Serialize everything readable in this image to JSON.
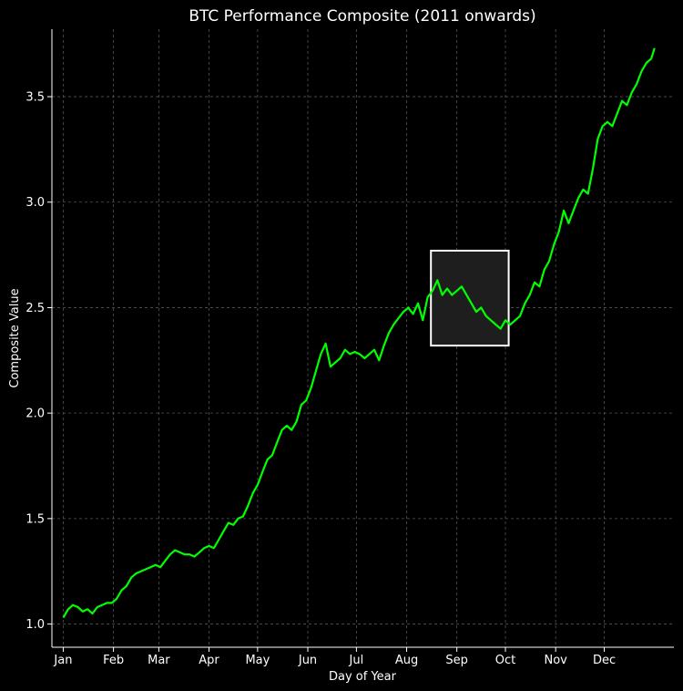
{
  "chart_data": {
    "type": "line",
    "title": "BTC Performance Composite (2011 onwards)",
    "xlabel": "Day of Year",
    "ylabel": "Composite Value",
    "x_tick_labels": [
      "Jan",
      "Feb",
      "Mar",
      "Apr",
      "May",
      "Jun",
      "Jul",
      "Aug",
      "Sep",
      "Oct",
      "Nov",
      "Dec"
    ],
    "x_tick_days": [
      1,
      32,
      60,
      91,
      121,
      152,
      182,
      213,
      244,
      274,
      305,
      335
    ],
    "xlim": [
      -6,
      378
    ],
    "ylim": [
      0.89,
      3.82
    ],
    "y_ticks": [
      1.0,
      1.5,
      2.0,
      2.5,
      3.0,
      3.5
    ],
    "y_tick_labels": [
      "1.0",
      "1.5",
      "2.0",
      "2.5",
      "3.0",
      "3.5"
    ],
    "grid": true,
    "line_color": "#00ff00",
    "highlight": {
      "x_range": [
        228,
        276
      ],
      "y_range": [
        2.32,
        2.77
      ],
      "fill": "#1e1e1e",
      "stroke": "#ffffff"
    },
    "series": [
      {
        "x": [
          1,
          4,
          7,
          10,
          13,
          16,
          19,
          22,
          25,
          28,
          31,
          34,
          37,
          40,
          43,
          46,
          49,
          52,
          55,
          58,
          61,
          64,
          67,
          70,
          73,
          76,
          79,
          82,
          85,
          88,
          91,
          94,
          97,
          100,
          103,
          106,
          109,
          112,
          115,
          118,
          121,
          124,
          127,
          130,
          133,
          136,
          139,
          142,
          145,
          148,
          151,
          154,
          157,
          160,
          163,
          166,
          169,
          172,
          175,
          178,
          181,
          184,
          187,
          190,
          193,
          196,
          199,
          202,
          205,
          208,
          211,
          214,
          217,
          220,
          223,
          226,
          229,
          232,
          235,
          238,
          241,
          244,
          247,
          250,
          253,
          256,
          259,
          262,
          265,
          268,
          271,
          274,
          277,
          280,
          283,
          286,
          289,
          292,
          295,
          298,
          301,
          304,
          307,
          310,
          313,
          316,
          319,
          322,
          325,
          328,
          331,
          334,
          337,
          340,
          343,
          346,
          349,
          352,
          355,
          358,
          361,
          364,
          366
        ],
        "y": [
          1.03,
          1.07,
          1.09,
          1.08,
          1.06,
          1.07,
          1.05,
          1.08,
          1.09,
          1.1,
          1.1,
          1.12,
          1.16,
          1.18,
          1.22,
          1.24,
          1.25,
          1.26,
          1.27,
          1.28,
          1.27,
          1.3,
          1.33,
          1.35,
          1.34,
          1.33,
          1.33,
          1.32,
          1.34,
          1.36,
          1.37,
          1.36,
          1.4,
          1.44,
          1.48,
          1.47,
          1.5,
          1.51,
          1.56,
          1.62,
          1.66,
          1.72,
          1.78,
          1.8,
          1.86,
          1.92,
          1.94,
          1.92,
          1.96,
          2.04,
          2.06,
          2.12,
          2.2,
          2.28,
          2.33,
          2.22,
          2.24,
          2.26,
          2.3,
          2.28,
          2.29,
          2.28,
          2.26,
          2.28,
          2.3,
          2.25,
          2.32,
          2.38,
          2.42,
          2.45,
          2.48,
          2.5,
          2.47,
          2.52,
          2.44,
          2.55,
          2.58,
          2.63,
          2.56,
          2.59,
          2.56,
          2.58,
          2.6,
          2.56,
          2.52,
          2.48,
          2.5,
          2.46,
          2.44,
          2.42,
          2.4,
          2.44,
          2.42,
          2.44,
          2.46,
          2.52,
          2.56,
          2.62,
          2.6,
          2.68,
          2.72,
          2.8,
          2.86,
          2.96,
          2.9,
          2.96,
          3.02,
          3.06,
          3.04,
          3.16,
          3.3,
          3.36,
          3.38,
          3.36,
          3.42,
          3.48,
          3.46,
          3.52,
          3.56,
          3.62,
          3.66,
          3.68,
          3.73
        ]
      }
    ]
  }
}
